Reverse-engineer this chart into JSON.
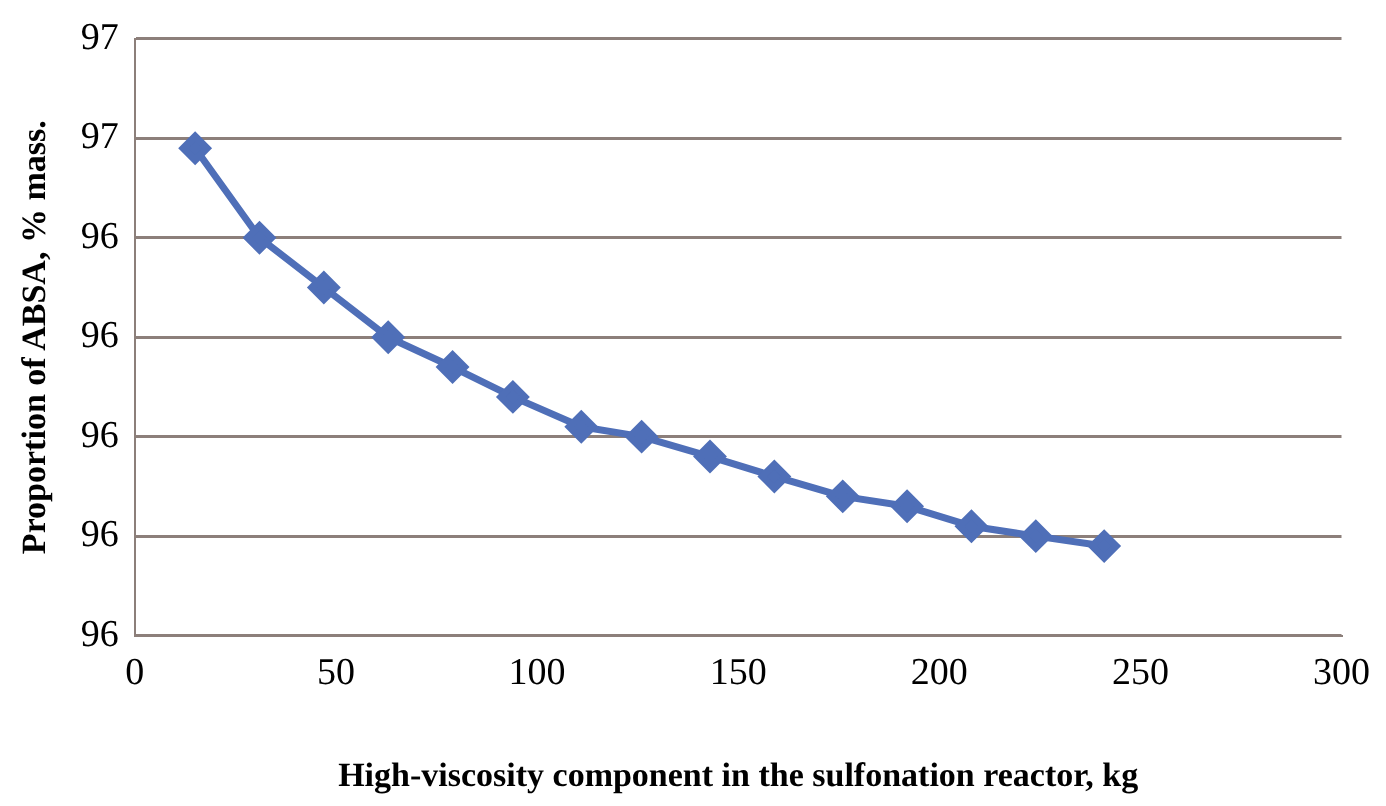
{
  "chart_data": {
    "type": "line",
    "xlabel": "High-viscosity component in the sulfonation reactor, kg",
    "ylabel": "Proportion of ABSA, % mass.",
    "x": [
      15,
      31,
      47,
      63,
      79,
      94,
      111,
      126,
      143,
      159,
      176,
      192,
      208,
      224,
      241
    ],
    "series": [
      {
        "color": "#4f6fb8",
        "values": [
          96.49,
          96.4,
          96.35,
          96.3,
          96.27,
          96.24,
          96.21,
          96.2,
          96.18,
          96.16,
          96.14,
          96.13,
          96.11,
          96.1,
          96.09
        ]
      }
    ],
    "xlim": [
      0,
      300
    ],
    "xticks": [
      0,
      50,
      100,
      150,
      200,
      250,
      300
    ],
    "ylim": [
      96.0,
      96.6
    ],
    "yticks": [
      {
        "value": 96.0,
        "label": "96"
      },
      {
        "value": 96.1,
        "label": "96"
      },
      {
        "value": 96.2,
        "label": "96"
      },
      {
        "value": 96.3,
        "label": "96"
      },
      {
        "value": 96.4,
        "label": "96"
      },
      {
        "value": 96.5,
        "label": "97"
      },
      {
        "value": 96.6,
        "label": "97"
      }
    ],
    "grid": "y",
    "marker": "diamond",
    "line_style": "solid",
    "legend": false
  }
}
